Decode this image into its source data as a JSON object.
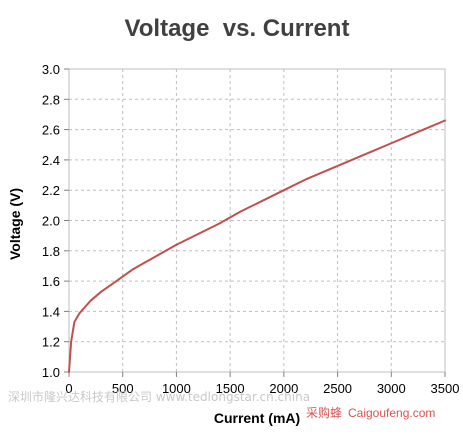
{
  "chart_data": {
    "type": "line",
    "title": "Voltage  vs. Current",
    "xlabel": "Current (mA)",
    "ylabel": "Voltage (V)",
    "xlim": [
      0,
      3500
    ],
    "ylim": [
      1.0,
      3.0
    ],
    "grid": true,
    "x_ticks": [
      0,
      500,
      1000,
      1500,
      2000,
      2500,
      3000,
      3500
    ],
    "y_ticks": [
      "1.0",
      "1.2",
      "1.4",
      "1.6",
      "1.8",
      "2.0",
      "2.2",
      "2.4",
      "2.6",
      "2.8",
      "3.0"
    ],
    "series": [
      {
        "color": "#c0504d",
        "x": [
          0,
          20,
          50,
          100,
          150,
          200,
          300,
          400,
          500,
          600,
          700,
          800,
          1000,
          1200,
          1400,
          1600,
          1800,
          2000,
          2200,
          2500,
          2800,
          3000,
          3300,
          3500
        ],
        "y": [
          1.0,
          1.2,
          1.33,
          1.39,
          1.43,
          1.47,
          1.53,
          1.58,
          1.63,
          1.68,
          1.72,
          1.76,
          1.84,
          1.91,
          1.98,
          2.06,
          2.13,
          2.2,
          2.27,
          2.36,
          2.45,
          2.51,
          2.6,
          2.66
        ]
      }
    ]
  },
  "watermarks": {
    "left": "深圳市隆兴达科技有限公司 www.tedlongstar.cn.china",
    "right_cn": "采购蜂",
    "right_en": "Caigoufeng.com"
  }
}
